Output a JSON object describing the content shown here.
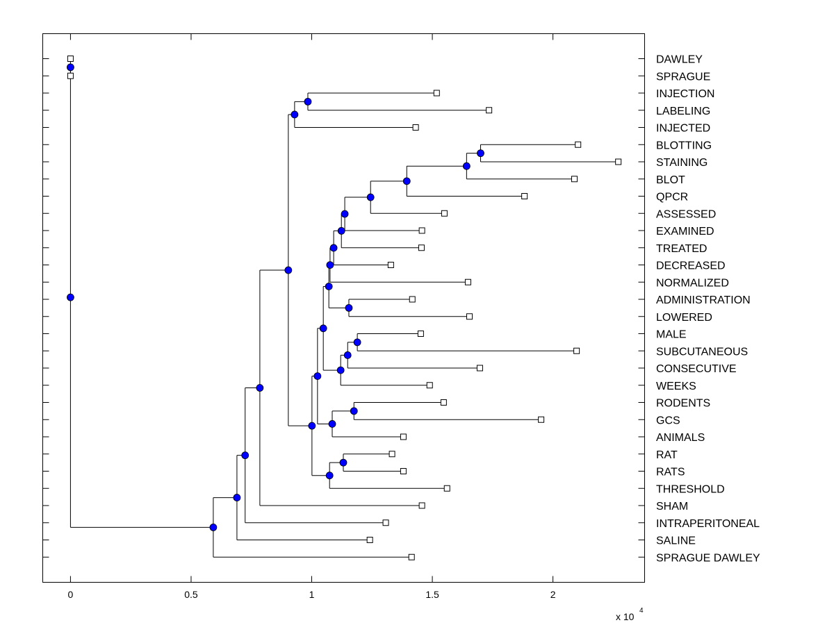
{
  "chart_data": {
    "type": "dendrogram",
    "title": "",
    "xlabel": "",
    "ylabel": "",
    "x_multiplier_label": "x 10",
    "x_multiplier_exponent": "4",
    "xlim": [
      -0.115,
      2.38
    ],
    "x_ticks": [
      0,
      0.5,
      1,
      1.5,
      2
    ],
    "x_tick_labels": [
      "0",
      "0.5",
      "1",
      "1.5",
      "2"
    ],
    "grid": false,
    "leaf_marker": "open-square",
    "node_marker": "filled-circle",
    "colors": {
      "node": "#0000ff",
      "line": "#000000",
      "leaf_fill": "#ffffff"
    },
    "leaves": [
      {
        "label": "DAWLEY",
        "value": 0
      },
      {
        "label": "SPRAGUE",
        "value": 0
      },
      {
        "label": "INJECTION",
        "value": 1.518
      },
      {
        "label": "LABELING",
        "value": 1.735
      },
      {
        "label": "INJECTED",
        "value": 1.431
      },
      {
        "label": "BLOTTING",
        "value": 2.104
      },
      {
        "label": "STAINING",
        "value": 2.271
      },
      {
        "label": "BLOT",
        "value": 2.089
      },
      {
        "label": "QPCR",
        "value": 1.882
      },
      {
        "label": "ASSESSED",
        "value": 1.55
      },
      {
        "label": "EXAMINED",
        "value": 1.457
      },
      {
        "label": "TREATED",
        "value": 1.455
      },
      {
        "label": "DECREASED",
        "value": 1.328
      },
      {
        "label": "NORMALIZED",
        "value": 1.648
      },
      {
        "label": "ADMINISTRATION",
        "value": 1.417
      },
      {
        "label": "LOWERED",
        "value": 1.654
      },
      {
        "label": "MALE",
        "value": 1.452
      },
      {
        "label": "SUBCUTANEOUS",
        "value": 2.098
      },
      {
        "label": "CONSECUTIVE",
        "value": 1.697
      },
      {
        "label": "WEEKS",
        "value": 1.489
      },
      {
        "label": "RODENTS",
        "value": 1.547
      },
      {
        "label": "GCS",
        "value": 1.951
      },
      {
        "label": "ANIMALS",
        "value": 1.38
      },
      {
        "label": "RAT",
        "value": 1.333
      },
      {
        "label": "RATS",
        "value": 1.38
      },
      {
        "label": "THRESHOLD",
        "value": 1.561
      },
      {
        "label": "SHAM",
        "value": 1.457
      },
      {
        "label": "INTRAPERITONEAL",
        "value": 1.307
      },
      {
        "label": "SALINE",
        "value": 1.241
      },
      {
        "label": "SPRAGUE DAWLEY",
        "value": 1.414
      }
    ],
    "nodes": [
      {
        "id": "n_ds",
        "value": 0,
        "children": [
          "L0",
          "L1"
        ]
      },
      {
        "id": "n_lab",
        "value": 0.984,
        "children": [
          "L2",
          "L3"
        ]
      },
      {
        "id": "n_inj",
        "value": 0.929,
        "children": [
          "n_lab",
          "L4"
        ]
      },
      {
        "id": "n_bs",
        "value": 1.7,
        "children": [
          "L5",
          "L6"
        ]
      },
      {
        "id": "n_blot",
        "value": 1.642,
        "children": [
          "n_bs",
          "L7"
        ]
      },
      {
        "id": "n_qpcr",
        "value": 1.394,
        "children": [
          "n_blot",
          "L8"
        ]
      },
      {
        "id": "n_ass",
        "value": 1.244,
        "children": [
          "n_qpcr",
          "L9"
        ]
      },
      {
        "id": "n_exa",
        "value": 1.137,
        "children": [
          "n_ass",
          "L10"
        ]
      },
      {
        "id": "n_tre",
        "value": 1.123,
        "children": [
          "n_exa",
          "L11"
        ]
      },
      {
        "id": "n_dec",
        "value": 1.091,
        "children": [
          "n_tre",
          "L12"
        ]
      },
      {
        "id": "n_nor",
        "value": 1.076,
        "children": [
          "n_dec",
          "L13"
        ]
      },
      {
        "id": "n_adm",
        "value": 1.154,
        "children": [
          "L14",
          "L15"
        ]
      },
      {
        "id": "n_mid",
        "value": 1.071,
        "children": [
          "n_nor",
          "n_adm"
        ]
      },
      {
        "id": "n_male",
        "value": 1.189,
        "children": [
          "L16",
          "L17"
        ]
      },
      {
        "id": "n_cons",
        "value": 1.149,
        "children": [
          "n_male",
          "L18"
        ]
      },
      {
        "id": "n_weeks",
        "value": 1.12,
        "children": [
          "n_cons",
          "L19"
        ]
      },
      {
        "id": "n_upper",
        "value": 1.048,
        "children": [
          "n_mid",
          "n_weeks"
        ]
      },
      {
        "id": "n_rod",
        "value": 1.175,
        "children": [
          "L20",
          "L21"
        ]
      },
      {
        "id": "n_ani",
        "value": 1.085,
        "children": [
          "n_rod",
          "L22"
        ]
      },
      {
        "id": "n_up2",
        "value": 1.024,
        "children": [
          "n_upper",
          "n_ani"
        ]
      },
      {
        "id": "n_rat",
        "value": 1.131,
        "children": [
          "L23",
          "L24"
        ]
      },
      {
        "id": "n_thr",
        "value": 1.074,
        "children": [
          "n_rat",
          "L25"
        ]
      },
      {
        "id": "n_big",
        "value": 1.001,
        "children": [
          "n_up2",
          "n_thr"
        ]
      },
      {
        "id": "n_top",
        "value": 0.903,
        "children": [
          "n_inj",
          "n_big"
        ]
      },
      {
        "id": "n_sham",
        "value": 0.785,
        "children": [
          "n_top",
          "L26"
        ]
      },
      {
        "id": "n_ip",
        "value": 0.724,
        "children": [
          "n_sham",
          "L27"
        ]
      },
      {
        "id": "n_sal",
        "value": 0.69,
        "children": [
          "n_ip",
          "L28"
        ]
      },
      {
        "id": "n_sd",
        "value": 0.592,
        "children": [
          "n_sal",
          "L29"
        ]
      },
      {
        "id": "root",
        "value": 0,
        "children": [
          "n_ds",
          "n_sd"
        ]
      }
    ]
  }
}
